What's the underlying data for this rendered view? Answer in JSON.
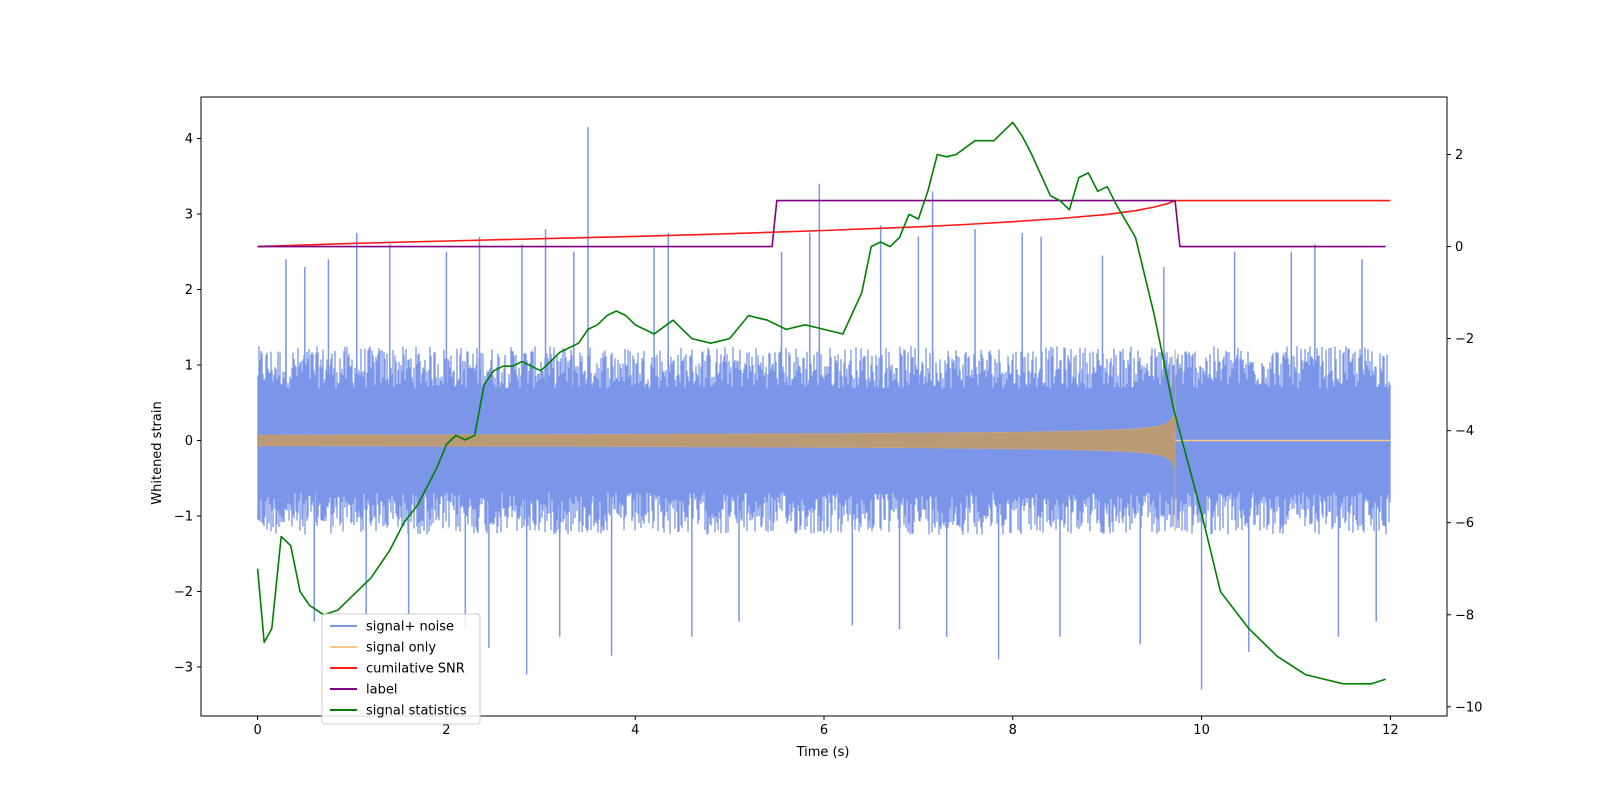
{
  "chart_data": {
    "type": "line",
    "title": "",
    "xlabel": "Time (s)",
    "ylabel": "Whitened strain",
    "y2label": "",
    "xlim": [
      -0.6,
      12.6
    ],
    "ylim": [
      -3.65,
      4.55
    ],
    "y2lim": [
      -10.2,
      3.25
    ],
    "x_ticks": [
      0,
      2,
      4,
      6,
      8,
      10,
      12
    ],
    "y_ticks": [
      -3,
      -2,
      -1,
      0,
      1,
      2,
      3,
      4
    ],
    "y2_ticks": [
      -10,
      -8,
      -6,
      -4,
      -2,
      0,
      2
    ],
    "legend_position": "lower-left",
    "noise": {
      "range": [
        0,
        12
      ],
      "band_low": -1.25,
      "band_high": 1.25,
      "spikes": [
        {
          "x": 0.3,
          "y": 2.4
        },
        {
          "x": 0.5,
          "y": 2.3
        },
        {
          "x": 0.6,
          "y": -2.4
        },
        {
          "x": 0.75,
          "y": 2.4
        },
        {
          "x": 1.05,
          "y": 2.75
        },
        {
          "x": 1.15,
          "y": -2.3
        },
        {
          "x": 1.4,
          "y": 2.6
        },
        {
          "x": 1.6,
          "y": -2.3
        },
        {
          "x": 2.0,
          "y": 2.5
        },
        {
          "x": 2.2,
          "y": -2.5
        },
        {
          "x": 2.35,
          "y": 2.7
        },
        {
          "x": 2.45,
          "y": -2.75
        },
        {
          "x": 2.8,
          "y": 2.6
        },
        {
          "x": 2.85,
          "y": -3.1
        },
        {
          "x": 3.05,
          "y": 2.8
        },
        {
          "x": 3.2,
          "y": -2.6
        },
        {
          "x": 3.35,
          "y": 2.5
        },
        {
          "x": 3.5,
          "y": 4.15
        },
        {
          "x": 3.75,
          "y": -2.85
        },
        {
          "x": 4.2,
          "y": 2.55
        },
        {
          "x": 4.35,
          "y": 2.75
        },
        {
          "x": 4.6,
          "y": -2.6
        },
        {
          "x": 5.1,
          "y": -2.4
        },
        {
          "x": 5.55,
          "y": 2.5
        },
        {
          "x": 5.85,
          "y": 2.75
        },
        {
          "x": 5.95,
          "y": 3.4
        },
        {
          "x": 6.3,
          "y": -2.45
        },
        {
          "x": 6.6,
          "y": 2.85
        },
        {
          "x": 6.8,
          "y": -2.5
        },
        {
          "x": 7.0,
          "y": 2.7
        },
        {
          "x": 7.15,
          "y": 3.3
        },
        {
          "x": 7.3,
          "y": -2.6
        },
        {
          "x": 7.6,
          "y": 2.8
        },
        {
          "x": 7.85,
          "y": -2.9
        },
        {
          "x": 8.1,
          "y": 2.75
        },
        {
          "x": 8.3,
          "y": 2.7
        },
        {
          "x": 8.5,
          "y": -2.6
        },
        {
          "x": 8.95,
          "y": 2.45
        },
        {
          "x": 9.35,
          "y": -2.7
        },
        {
          "x": 9.6,
          "y": 2.3
        },
        {
          "x": 10.0,
          "y": -3.3
        },
        {
          "x": 10.35,
          "y": 2.5
        },
        {
          "x": 10.5,
          "y": -2.8
        },
        {
          "x": 10.95,
          "y": 2.5
        },
        {
          "x": 11.2,
          "y": 2.6
        },
        {
          "x": 11.45,
          "y": -2.6
        },
        {
          "x": 11.7,
          "y": 2.4
        },
        {
          "x": 11.85,
          "y": -2.4
        }
      ]
    },
    "signal": {
      "range": [
        0,
        9.72
      ],
      "amp_start": 0.07,
      "amp_end": 1.2,
      "after_value": 0
    },
    "series": [
      {
        "name": "signal+ noise",
        "color": "#7b95e8",
        "axis": "left"
      },
      {
        "name": "signal only",
        "color": "#f5c98a",
        "axis": "left"
      },
      {
        "name": "cumilative SNR",
        "color": "#ff1a1a",
        "axis": "right",
        "x": [
          0,
          1,
          2,
          3,
          4,
          5,
          6,
          7,
          7.5,
          8,
          8.5,
          9,
          9.3,
          9.5,
          9.65,
          9.72,
          12
        ],
        "y": [
          0,
          0.07,
          0.12,
          0.17,
          0.22,
          0.28,
          0.35,
          0.43,
          0.48,
          0.54,
          0.61,
          0.7,
          0.78,
          0.86,
          0.94,
          1.0,
          1.0
        ]
      },
      {
        "name": "label",
        "color": "#800080",
        "axis": "right",
        "x": [
          0,
          5.45,
          5.5,
          9.72,
          9.77,
          11.95
        ],
        "y": [
          0,
          0,
          1,
          1,
          0,
          0
        ]
      },
      {
        "name": "signal statistics",
        "color": "#008000",
        "axis": "right",
        "x": [
          0,
          0.07,
          0.15,
          0.25,
          0.35,
          0.45,
          0.55,
          0.7,
          0.85,
          1.0,
          1.2,
          1.4,
          1.55,
          1.7,
          1.9,
          2.0,
          2.1,
          2.2,
          2.3,
          2.4,
          2.5,
          2.6,
          2.7,
          2.8,
          2.9,
          3.0,
          3.2,
          3.4,
          3.5,
          3.6,
          3.7,
          3.8,
          3.9,
          4.0,
          4.2,
          4.4,
          4.6,
          4.8,
          5.0,
          5.2,
          5.4,
          5.6,
          5.8,
          6.0,
          6.2,
          6.4,
          6.5,
          6.6,
          6.7,
          6.8,
          6.9,
          7.0,
          7.1,
          7.2,
          7.3,
          7.4,
          7.6,
          7.7,
          7.8,
          8.0,
          8.1,
          8.2,
          8.4,
          8.5,
          8.6,
          8.7,
          8.8,
          8.9,
          9.0,
          9.1,
          9.3,
          9.5,
          9.7,
          10.0,
          10.2,
          10.5,
          10.8,
          11.1,
          11.5,
          11.8,
          11.95
        ],
        "y": [
          -7.0,
          -8.6,
          -8.3,
          -6.3,
          -6.5,
          -7.5,
          -7.8,
          -8.0,
          -7.9,
          -7.6,
          -7.2,
          -6.6,
          -6.0,
          -5.6,
          -4.8,
          -4.3,
          -4.1,
          -4.2,
          -4.1,
          -3.0,
          -2.7,
          -2.6,
          -2.6,
          -2.5,
          -2.6,
          -2.7,
          -2.3,
          -2.1,
          -1.8,
          -1.7,
          -1.5,
          -1.4,
          -1.5,
          -1.7,
          -1.9,
          -1.6,
          -2.0,
          -2.1,
          -2.0,
          -1.5,
          -1.6,
          -1.8,
          -1.7,
          -1.8,
          -1.9,
          -1.0,
          0.0,
          0.1,
          0.0,
          0.2,
          0.7,
          0.6,
          1.2,
          2.0,
          1.95,
          2.0,
          2.3,
          2.3,
          2.3,
          2.7,
          2.4,
          2.0,
          1.1,
          1.0,
          0.8,
          1.5,
          1.6,
          1.2,
          1.3,
          0.9,
          0.2,
          -1.5,
          -3.5,
          -5.8,
          -7.5,
          -8.3,
          -8.9,
          -9.3,
          -9.5,
          -9.5,
          -9.4
        ]
      }
    ]
  }
}
